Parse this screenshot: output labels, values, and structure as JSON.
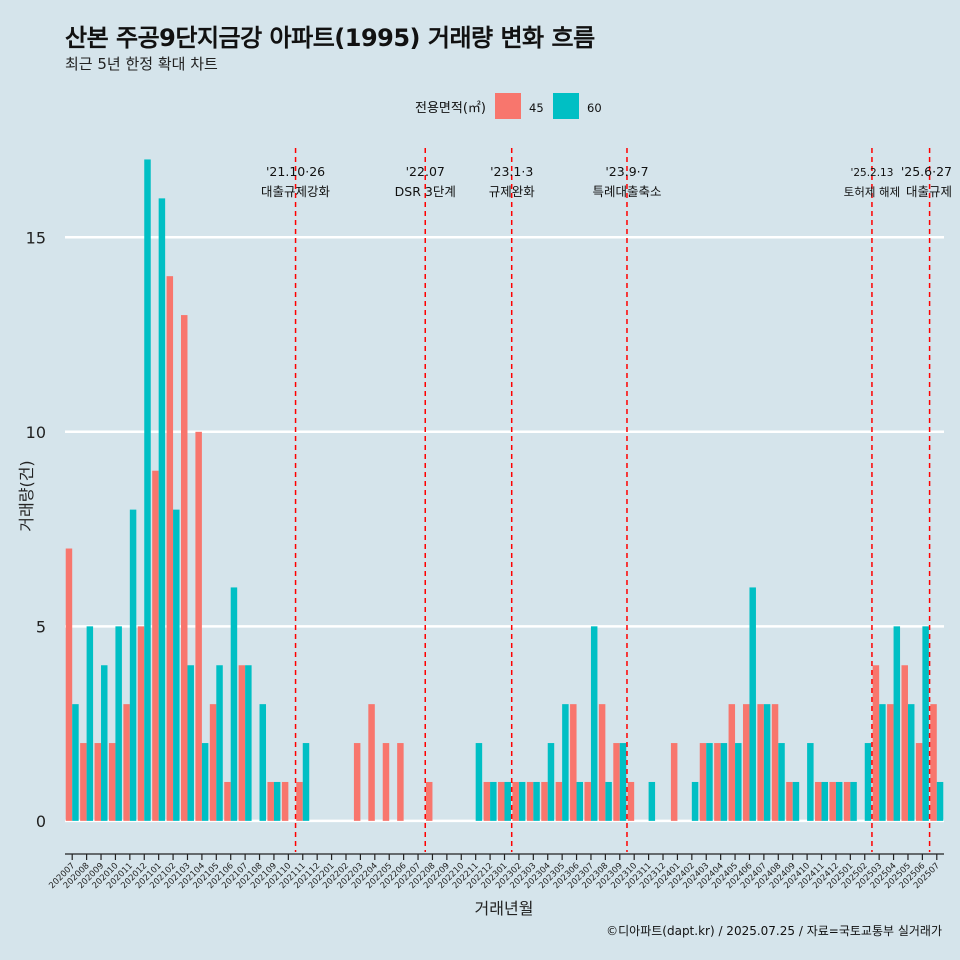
{
  "title": "산본 주공9단지금강 아파트(1995) 거래량 변화 흐름",
  "subtitle": "최근 5년 한정 확대 차트",
  "caption": "©디아파트(dapt.kr) / 2025.07.25 / 자료=국토교통부 실거래가",
  "colors": {
    "s45": "#f8766d",
    "s60": "#00bfc4",
    "background": "#d5e4eb",
    "gridline": "#ffffff",
    "event_line": "#ff0000"
  },
  "chart_data": {
    "type": "bar",
    "xlabel": "거래년월",
    "ylabel": "거래량(건)",
    "ylim": [
      -0.8,
      17.5
    ],
    "yticks": [
      0,
      5,
      10,
      15
    ],
    "legend": {
      "title": "전용면적(㎡)",
      "position": "top"
    },
    "categories": [
      "202007",
      "202008",
      "202009",
      "202010",
      "202011",
      "202012",
      "202101",
      "202102",
      "202103",
      "202104",
      "202105",
      "202106",
      "202107",
      "202108",
      "202109",
      "202110",
      "202111",
      "202112",
      "202201",
      "202202",
      "202203",
      "202204",
      "202205",
      "202206",
      "202207",
      "202208",
      "202209",
      "202210",
      "202211",
      "202212",
      "202301",
      "202302",
      "202303",
      "202304",
      "202305",
      "202306",
      "202307",
      "202308",
      "202309",
      "202310",
      "202311",
      "202312",
      "202401",
      "202402",
      "202403",
      "202404",
      "202405",
      "202406",
      "202407",
      "202408",
      "202409",
      "202410",
      "202411",
      "202412",
      "202501",
      "202502",
      "202503",
      "202504",
      "202505",
      "202506",
      "202507"
    ],
    "series": [
      {
        "name": "45",
        "values": [
          7,
          2,
          2,
          2,
          3,
          5,
          9,
          14,
          13,
          10,
          3,
          1,
          4,
          0,
          1,
          1,
          1,
          0,
          0,
          0,
          2,
          3,
          2,
          2,
          0,
          1,
          0,
          0,
          0,
          1,
          1,
          1,
          1,
          1,
          1,
          3,
          1,
          3,
          2,
          1,
          0,
          0,
          2,
          0,
          2,
          2,
          3,
          3,
          3,
          3,
          1,
          0,
          1,
          1,
          1,
          0,
          4,
          3,
          4,
          2,
          3
        ]
      },
      {
        "name": "60",
        "values": [
          3,
          5,
          4,
          5,
          8,
          17,
          16,
          8,
          4,
          2,
          4,
          6,
          4,
          3,
          1,
          0,
          2,
          0,
          0,
          0,
          0,
          0,
          0,
          0,
          0,
          0,
          0,
          0,
          2,
          1,
          1,
          1,
          1,
          2,
          3,
          1,
          5,
          1,
          2,
          0,
          1,
          0,
          0,
          1,
          2,
          2,
          2,
          6,
          3,
          2,
          1,
          2,
          1,
          1,
          1,
          2,
          3,
          5,
          3,
          5,
          1
        ]
      }
    ],
    "events": [
      {
        "date_label": "'21.10·26",
        "desc": "대출규제강화",
        "after_month": "202110",
        "small": false
      },
      {
        "date_label": "'22.07",
        "desc": "DSR 3단계",
        "after_month": "202207",
        "small": false
      },
      {
        "date_label": "'23.1·3",
        "desc": "규제완화",
        "after_month": "202301",
        "small": false
      },
      {
        "date_label": "'23.9·7",
        "desc": "특례대출축소",
        "after_month": "202309",
        "small": false
      },
      {
        "date_label": "'25.2.13",
        "desc": "토허제 해제",
        "after_month": "202502",
        "small": true
      },
      {
        "date_label": "'25.6·27",
        "desc": "대출규제",
        "after_month": "202506",
        "small": false
      }
    ]
  }
}
